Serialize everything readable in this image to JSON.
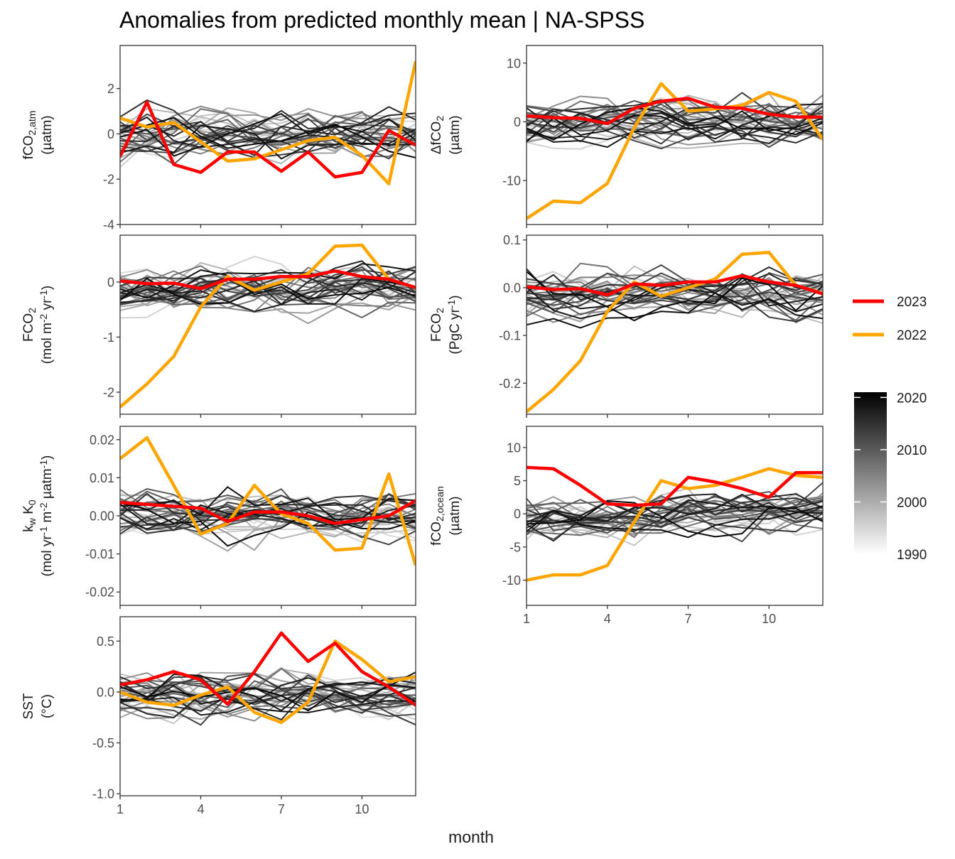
{
  "title": "Anomalies from predicted monthly mean | NA-SPSS",
  "xlabel": "month",
  "legend": {
    "lines": [
      {
        "label": "2023",
        "color": "#ff0000"
      },
      {
        "label": "2022",
        "color": "#ffa500"
      }
    ],
    "colorbar": {
      "ticks": [
        "2020",
        "2010",
        "2000",
        "1990"
      ],
      "min": 1990,
      "max": 2021
    }
  },
  "chart_data": [
    {
      "type": "line",
      "name": "fco2atm",
      "ylabel": [
        "fCO",
        "2,atm",
        "(µatm)"
      ],
      "xlim": [
        1,
        12
      ],
      "ylim": [
        -4,
        3.9
      ],
      "yticks": [
        2,
        0,
        -2,
        -4
      ],
      "ytick_labels": [
        "2",
        "0",
        "-2",
        "-4"
      ],
      "xticks": [
        1,
        4,
        7,
        10
      ],
      "series": [
        {
          "name": "2023",
          "x": [
            1,
            2,
            3,
            4,
            5,
            6,
            7,
            8,
            9,
            10,
            11,
            12
          ],
          "values": [
            -1.0,
            1.4,
            -1.35,
            -1.7,
            -0.8,
            -0.8,
            -1.65,
            -0.8,
            -1.9,
            -1.7,
            0.15,
            -0.5
          ]
        },
        {
          "name": "2022",
          "x": [
            1,
            2,
            3,
            4,
            5,
            6,
            7,
            8,
            9,
            10,
            11,
            12
          ],
          "values": [
            0.7,
            0.3,
            0.5,
            -0.35,
            -1.2,
            -1.1,
            -0.7,
            -0.3,
            -0.15,
            -0.95,
            -2.2,
            3.2
          ]
        }
      ]
    },
    {
      "type": "line",
      "name": "dfco2",
      "ylabel": [
        "ΔfCO",
        "2",
        "(µatm)"
      ],
      "xlim": [
        1,
        12
      ],
      "ylim": [
        -17.5,
        13
      ],
      "yticks": [
        10,
        0,
        -10
      ],
      "ytick_labels": [
        "10",
        "0",
        "-10"
      ],
      "xticks": [
        1,
        4,
        7,
        10
      ],
      "series": [
        {
          "name": "2023",
          "x": [
            1,
            2,
            3,
            4,
            5,
            6,
            7,
            8,
            9,
            10,
            11,
            12
          ],
          "values": [
            1.0,
            0.7,
            0.6,
            -0.3,
            2.3,
            3.5,
            4.0,
            2.5,
            2.3,
            1.3,
            0.8,
            0.8
          ]
        },
        {
          "name": "2022",
          "x": [
            1,
            2,
            3,
            4,
            5,
            6,
            7,
            8,
            9,
            10,
            11,
            12
          ],
          "values": [
            -16.5,
            -13.5,
            -13.8,
            -10.5,
            -1.0,
            6.5,
            1.8,
            2.2,
            2.8,
            5.0,
            3.5,
            -3.0
          ]
        }
      ]
    },
    {
      "type": "line",
      "name": "fco2_flux_area",
      "ylabel": [
        "FCO",
        "2",
        "(mol m",
        "-2",
        " yr",
        "-1",
        ")"
      ],
      "xlim": [
        1,
        12
      ],
      "ylim": [
        -2.4,
        0.85
      ],
      "yticks": [
        0,
        -1,
        -2
      ],
      "ytick_labels": [
        "0",
        "-1",
        "-2"
      ],
      "xticks": [
        1,
        4,
        7,
        10
      ],
      "series": [
        {
          "name": "2023",
          "x": [
            1,
            2,
            3,
            4,
            5,
            6,
            7,
            8,
            9,
            10,
            11,
            12
          ],
          "values": [
            0.02,
            -0.03,
            -0.02,
            -0.12,
            0.05,
            0.05,
            0.1,
            0.1,
            0.2,
            0.1,
            0.05,
            -0.1
          ]
        },
        {
          "name": "2022",
          "x": [
            1,
            2,
            3,
            4,
            5,
            6,
            7,
            8,
            9,
            10,
            11,
            12
          ],
          "values": [
            -2.27,
            -1.85,
            -1.35,
            -0.45,
            0.1,
            -0.15,
            0.0,
            0.15,
            0.65,
            0.67,
            0.05,
            -0.1
          ]
        }
      ]
    },
    {
      "type": "line",
      "name": "fco2_flux_total",
      "ylabel": [
        "FCO",
        "2",
        "(PgC yr",
        "-1",
        ")"
      ],
      "xlim": [
        1,
        12
      ],
      "ylim": [
        -0.265,
        0.11
      ],
      "yticks": [
        0.1,
        0,
        -0.1,
        -0.2
      ],
      "ytick_labels": [
        "0.1",
        "0.0",
        "-0.1",
        "-0.2"
      ],
      "xticks": [
        1,
        4,
        7,
        10
      ],
      "series": [
        {
          "name": "2023",
          "x": [
            1,
            2,
            3,
            4,
            5,
            6,
            7,
            8,
            9,
            10,
            11,
            12
          ],
          "values": [
            0.002,
            -0.004,
            -0.002,
            -0.015,
            0.008,
            0.005,
            0.012,
            0.012,
            0.025,
            0.012,
            0.005,
            -0.013
          ]
        },
        {
          "name": "2022",
          "x": [
            1,
            2,
            3,
            4,
            5,
            6,
            7,
            8,
            9,
            10,
            11,
            12
          ],
          "values": [
            -0.26,
            -0.213,
            -0.153,
            -0.05,
            0.012,
            -0.018,
            0.0,
            0.018,
            0.07,
            0.074,
            0.005,
            -0.012
          ]
        }
      ]
    },
    {
      "type": "line",
      "name": "kwk0",
      "ylabel": [
        "k",
        "w",
        " K",
        "0",
        "(mol yr",
        "-1",
        " m",
        "-2",
        " µatm",
        "-1",
        ")"
      ],
      "xlim": [
        1,
        12
      ],
      "ylim": [
        -0.0235,
        0.0235
      ],
      "yticks": [
        0.02,
        0.01,
        0,
        -0.01,
        -0.02
      ],
      "ytick_labels": [
        "0.02",
        "0.01",
        "0.00",
        "-0.01",
        "-0.02"
      ],
      "xticks": [
        1,
        4,
        7,
        10
      ],
      "series": [
        {
          "name": "2023",
          "x": [
            1,
            2,
            3,
            4,
            5,
            6,
            7,
            8,
            9,
            10,
            11,
            12
          ],
          "values": [
            0.0035,
            0.003,
            0.0025,
            0.002,
            -0.0015,
            0.001,
            0.001,
            0.0,
            -0.002,
            -0.001,
            0.0,
            0.004
          ]
        },
        {
          "name": "2022",
          "x": [
            1,
            2,
            3,
            4,
            5,
            6,
            7,
            8,
            9,
            10,
            11,
            12
          ],
          "values": [
            0.015,
            0.0205,
            0.008,
            -0.0048,
            -0.002,
            0.008,
            0.0005,
            -0.002,
            -0.009,
            -0.0085,
            0.011,
            -0.013
          ]
        }
      ]
    },
    {
      "type": "line",
      "name": "fco2ocean",
      "ylabel": [
        "fCO",
        "2,ocean",
        "(µatm)"
      ],
      "xlim": [
        1,
        12
      ],
      "ylim": [
        -13.8,
        13.2
      ],
      "yticks": [
        10,
        5,
        0,
        -5,
        -10
      ],
      "ytick_labels": [
        "10",
        "5",
        "0",
        "-5",
        "-10"
      ],
      "xticks": [
        1,
        4,
        7,
        10
      ],
      "xtick_labels": [
        "1",
        "4",
        "7",
        "10"
      ],
      "series": [
        {
          "name": "2023",
          "x": [
            1,
            2,
            3,
            4,
            5,
            6,
            7,
            8,
            9,
            10,
            11,
            12
          ],
          "values": [
            7.0,
            6.8,
            4.3,
            1.5,
            1.3,
            1.5,
            5.5,
            4.8,
            3.8,
            2.5,
            6.2,
            6.2
          ]
        },
        {
          "name": "2022",
          "x": [
            1,
            2,
            3,
            4,
            5,
            6,
            7,
            8,
            9,
            10,
            11,
            12
          ],
          "values": [
            -10.0,
            -9.2,
            -9.2,
            -7.8,
            -1.2,
            5.0,
            3.8,
            4.3,
            5.5,
            6.8,
            5.8,
            5.5
          ]
        }
      ]
    },
    {
      "type": "line",
      "name": "sst",
      "ylabel": [
        "SST",
        "(°C)"
      ],
      "xlim": [
        1,
        12
      ],
      "ylim": [
        -1.02,
        0.74
      ],
      "yticks": [
        0.5,
        0,
        -0.5,
        -1
      ],
      "ytick_labels": [
        "0.5",
        "0.0",
        "-0.5",
        "-1.0"
      ],
      "xticks": [
        1,
        4,
        7,
        10
      ],
      "xtick_labels": [
        "1",
        "4",
        "7",
        "10"
      ],
      "series": [
        {
          "name": "2023",
          "x": [
            1,
            2,
            3,
            4,
            5,
            6,
            7,
            8,
            9,
            10,
            11,
            12
          ],
          "values": [
            0.07,
            0.12,
            0.2,
            0.12,
            -0.12,
            0.2,
            0.58,
            0.3,
            0.48,
            0.2,
            0.05,
            -0.13
          ]
        },
        {
          "name": "2022",
          "x": [
            1,
            2,
            3,
            4,
            5,
            6,
            7,
            8,
            9,
            10,
            11,
            12
          ],
          "values": [
            0.0,
            -0.1,
            -0.13,
            -0.03,
            0.05,
            -0.2,
            -0.3,
            -0.1,
            0.5,
            0.32,
            0.1,
            0.15
          ]
        }
      ]
    }
  ]
}
